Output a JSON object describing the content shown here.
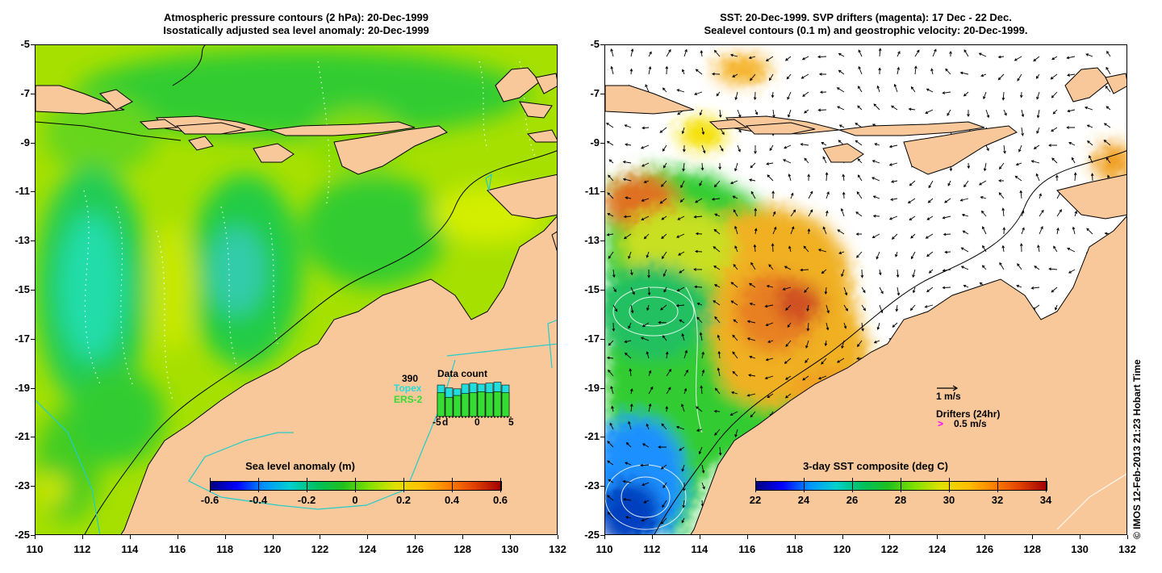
{
  "left_panel": {
    "title_line1": "Atmospheric pressure contours (2 hPa): 20-Dec-1999",
    "title_line2": "Isostatically adjusted sea level anomaly: 20-Dec-1999",
    "colorbar": {
      "title": "Sea level anomaly (m)",
      "ticks": [
        "-0.6",
        "-0.4",
        "-0.2",
        "0",
        "0.2",
        "0.4",
        "0.6"
      ],
      "range": [
        -0.6,
        0.6
      ]
    },
    "data_count": {
      "title": "Data count",
      "max_label": "390",
      "topex_label": "Topex",
      "ers2_label": "ERS-2",
      "x_ticks": [
        "-5",
        "d",
        "0",
        "5"
      ],
      "topex_counts": [
        330,
        300,
        290,
        340,
        350,
        340,
        350,
        360,
        330
      ],
      "ers2_counts": [
        250,
        200,
        220,
        240,
        250,
        260,
        250,
        260,
        250
      ],
      "count_max": 390
    }
  },
  "right_panel": {
    "title_line1": "SST: 20-Dec-1999. SVP drifters (magenta): 17 Dec - 22 Dec.",
    "title_line2": "Sealevel contours (0.1 m) and geostrophic velocity: 20-Dec-1999.",
    "colorbar": {
      "title": "3-day SST composite (deg C)",
      "ticks": [
        "22",
        "24",
        "26",
        "28",
        "30",
        "32",
        "34"
      ],
      "range": [
        22,
        34
      ]
    },
    "velocity_scale_label": "1 m/s",
    "drifters_label": "Drifters (24hr)",
    "drifter_scale_label": "0.5 m/s"
  },
  "axes": {
    "lon_ticks": [
      110,
      112,
      114,
      116,
      118,
      120,
      122,
      124,
      126,
      128,
      130,
      132
    ],
    "lat_ticks": [
      -5,
      -7,
      -9,
      -11,
      -13,
      -15,
      -17,
      -19,
      -21,
      -23,
      -25
    ],
    "lon_range": [
      110,
      132
    ],
    "lat_range": [
      -25,
      -5
    ]
  },
  "credit": "© IMOS 12-Feb-2013 21:23 Hobart Time",
  "colors": {
    "land": "#f8c89a",
    "sla_background": "#9be000",
    "sla_green": "#33cc33",
    "sla_cyan": "#22ddaa",
    "sst_orange": "#f5a020",
    "sst_green": "#33cc33",
    "sst_blue": "#1e90ff",
    "outline_cyan": "#22cccc",
    "drifter": "#ff00ff"
  }
}
